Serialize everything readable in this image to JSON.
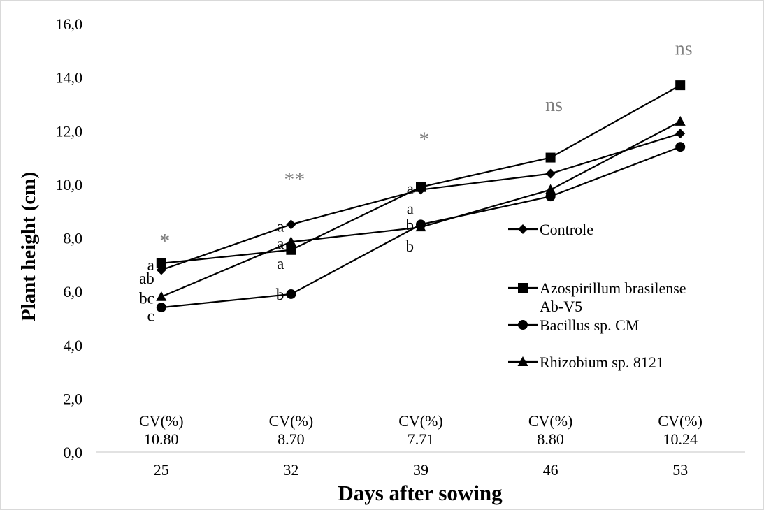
{
  "chart_data": {
    "type": "line",
    "xlabel": "Days after sowing",
    "ylabel": "Plant height (cm)",
    "ylim": [
      0,
      16
    ],
    "yticks": [
      "0,0",
      "2,0",
      "4,0",
      "6,0",
      "8,0",
      "10,0",
      "12,0",
      "14,0",
      "16,0"
    ],
    "categories": [
      "25",
      "32",
      "39",
      "46",
      "53"
    ],
    "series": [
      {
        "name": "Controle",
        "marker": "diamond",
        "values": [
          6.8,
          8.5,
          9.8,
          10.4,
          11.9
        ]
      },
      {
        "name": "Azospirillum brasilense Ab-V5",
        "name_lines": [
          "Azospirillum brasilense",
          "Ab-V5"
        ],
        "marker": "square",
        "values": [
          7.05,
          7.55,
          9.9,
          11.0,
          13.7
        ]
      },
      {
        "name": "Bacillus sp. CM",
        "marker": "circle",
        "values": [
          5.4,
          5.9,
          8.5,
          9.55,
          11.4
        ]
      },
      {
        "name": "Rhizobium sp. 8121",
        "marker": "triangle",
        "values": [
          5.8,
          7.85,
          8.4,
          9.8,
          12.35
        ]
      }
    ],
    "significance": [
      "*",
      "**",
      "*",
      "ns",
      "ns"
    ],
    "cv_label": "CV(%)",
    "cv_values": [
      "10.80",
      "8.70",
      "7.71",
      "8.80",
      "10.24"
    ],
    "letters": [
      {
        "text": "a",
        "x": 0,
        "y": 7.0
      },
      {
        "text": "ab",
        "x": 0,
        "y": 6.5
      },
      {
        "text": "bc",
        "x": 0,
        "y": 5.75
      },
      {
        "text": "c",
        "x": 0,
        "y": 5.1
      },
      {
        "text": "a",
        "x": 1,
        "y": 8.45
      },
      {
        "text": "a",
        "x": 1,
        "y": 7.8
      },
      {
        "text": "a",
        "x": 1,
        "y": 7.05
      },
      {
        "text": "b",
        "x": 1,
        "y": 5.9
      },
      {
        "text": "a",
        "x": 2,
        "y": 9.85
      },
      {
        "text": "a",
        "x": 2,
        "y": 9.1
      },
      {
        "text": "b",
        "x": 2,
        "y": 8.5
      },
      {
        "text": "b",
        "x": 2,
        "y": 7.7
      }
    ],
    "legend_position": "right",
    "colors": {
      "line": "#000000",
      "significance": "#7f7f7f",
      "axis": "#d9d9d9"
    }
  }
}
